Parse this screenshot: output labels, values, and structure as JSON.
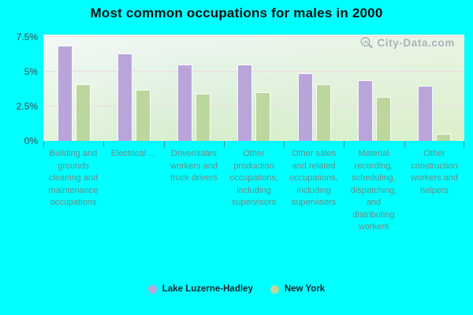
{
  "title": "Most common occupations for males in 2000",
  "watermark": "City-Data.com",
  "colors": {
    "background": "#00ffff",
    "series1": "#b9a5d9",
    "series2": "#bcd79d",
    "gridline": "#eed6e4",
    "axis_label": "#3c4a4c",
    "category_label": "#6f8a8a",
    "watermark_gray": "#9fa8b2"
  },
  "chart_data": {
    "type": "bar",
    "title": "Most common occupations for males in 2000",
    "categories": [
      "Building and grounds cleaning and maintenance occupations",
      "Electrical ...",
      "Driver/sales workers and truck drivers",
      "Other production occupations, including supervisors",
      "Other sales and related occupations, including supervisors",
      "Material recording, scheduling, dispatching, and distributing workers",
      "Other construction workers and helpers"
    ],
    "series": [
      {
        "name": "Lake Luzerne-Hadley",
        "color": "#b9a5d9",
        "values": [
          6.9,
          6.3,
          5.5,
          5.5,
          4.9,
          4.4,
          4.0
        ]
      },
      {
        "name": "New York",
        "color": "#bcd79d",
        "values": [
          4.1,
          3.7,
          3.4,
          3.5,
          4.1,
          3.2,
          0.5
        ]
      }
    ],
    "y_ticks": [
      {
        "label": "0%",
        "value": 0
      },
      {
        "label": "2.5%",
        "value": 2.5
      },
      {
        "label": "5%",
        "value": 5
      },
      {
        "label": "7.5%",
        "value": 7.5
      }
    ],
    "ylim": [
      0,
      7.67
    ],
    "xlabel": "",
    "ylabel": "",
    "grid": "horizontal",
    "legend_position": "bottom"
  }
}
